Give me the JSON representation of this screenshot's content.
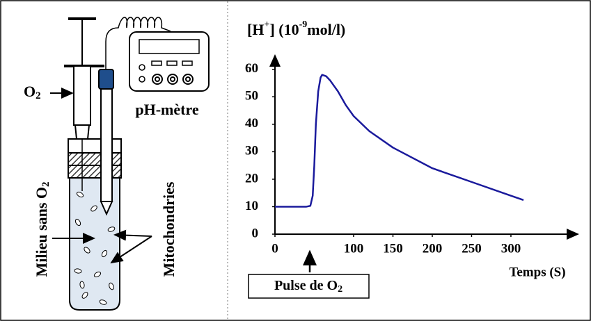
{
  "chart_data": {
    "type": "line",
    "ylabel_parts": [
      "[H",
      "+",
      "] (10",
      "-9",
      "mol/l)"
    ],
    "xlabel": "Temps (S)",
    "annotation_parts": [
      "Pulse de O",
      "2"
    ],
    "x": [
      0,
      10,
      20,
      30,
      40,
      45,
      48,
      50,
      52,
      55,
      58,
      60,
      65,
      70,
      80,
      90,
      100,
      120,
      150,
      200,
      250,
      300,
      316
    ],
    "series": [
      {
        "color": "#1a1a9c",
        "values": [
          10,
          10,
          10,
          10,
          10,
          10.3,
          14,
          25,
          40,
          52,
          57,
          58,
          57.5,
          56,
          52,
          47,
          43,
          37.5,
          31.5,
          24,
          19,
          14,
          12.4
        ]
      }
    ],
    "xlim": [
      0,
      385
    ],
    "ylim": [
      0,
      65
    ],
    "xticks": [
      0,
      100,
      150,
      200,
      250,
      300
    ],
    "yticks": [
      0,
      10,
      20,
      30,
      40,
      50,
      60
    ],
    "grid": false
  },
  "diagram": {
    "o2_label": [
      "O",
      "2"
    ],
    "meter_label": "pH-mètre",
    "medium_label": [
      "Milieu sans O",
      "2"
    ],
    "mito_label": "Mitochondries"
  }
}
